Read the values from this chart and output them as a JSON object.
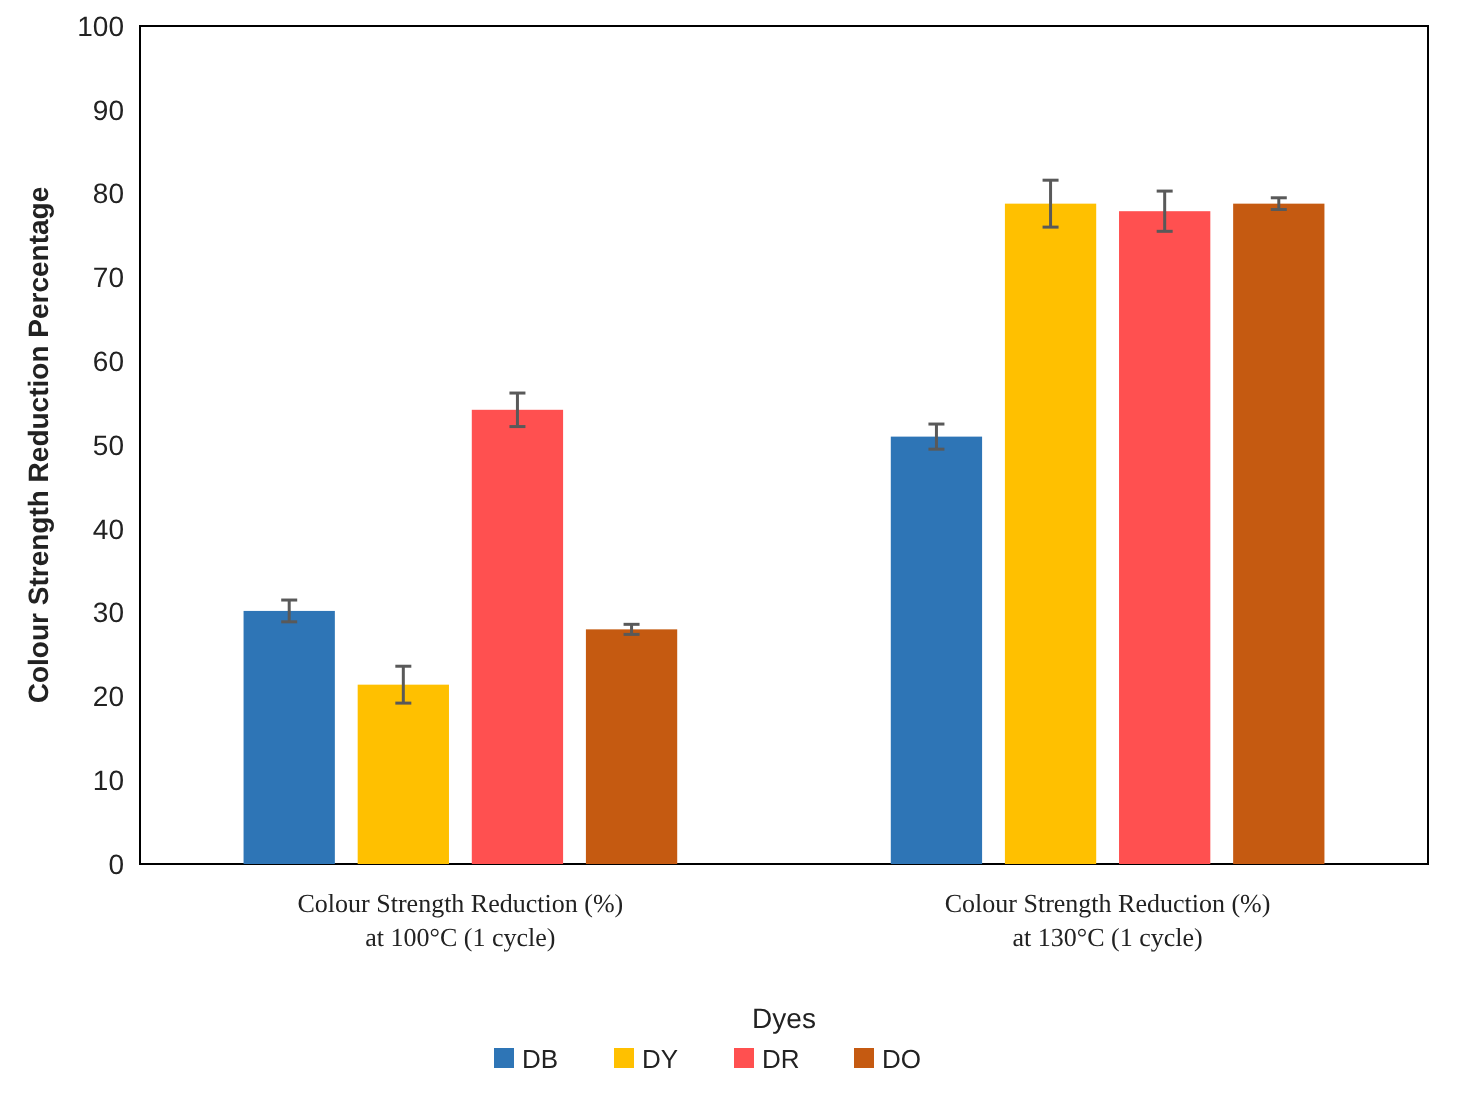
{
  "chart_data": {
    "type": "bar",
    "xlabel": "Dyes",
    "ylabel": "Colour Strength Reduction Percentage",
    "categories": [
      "Colour Strength Reduction (%)\nat 100°C (1 cycle)",
      "Colour Strength Reduction (%)\nat 130°C (1 cycle)"
    ],
    "series": [
      {
        "name": "DB",
        "color": "#2e75b6",
        "values": [
          30.2,
          51
        ],
        "errors": [
          1.3,
          1.5
        ]
      },
      {
        "name": "DY",
        "color": "#ffc000",
        "values": [
          21.4,
          78.8
        ],
        "errors": [
          2.2,
          2.8
        ]
      },
      {
        "name": "DR",
        "color": "#ff5050",
        "values": [
          54.2,
          77.9
        ],
        "errors": [
          2,
          2.4
        ]
      },
      {
        "name": "DO",
        "color": "#c55a11",
        "values": [
          28,
          78.8
        ],
        "errors": [
          0.6,
          0.7
        ]
      }
    ],
    "ylim": [
      0,
      100
    ],
    "yticks": [
      0,
      10,
      20,
      30,
      40,
      50,
      60,
      70,
      80,
      90,
      100
    ],
    "grid": false,
    "legend": "bottom"
  }
}
